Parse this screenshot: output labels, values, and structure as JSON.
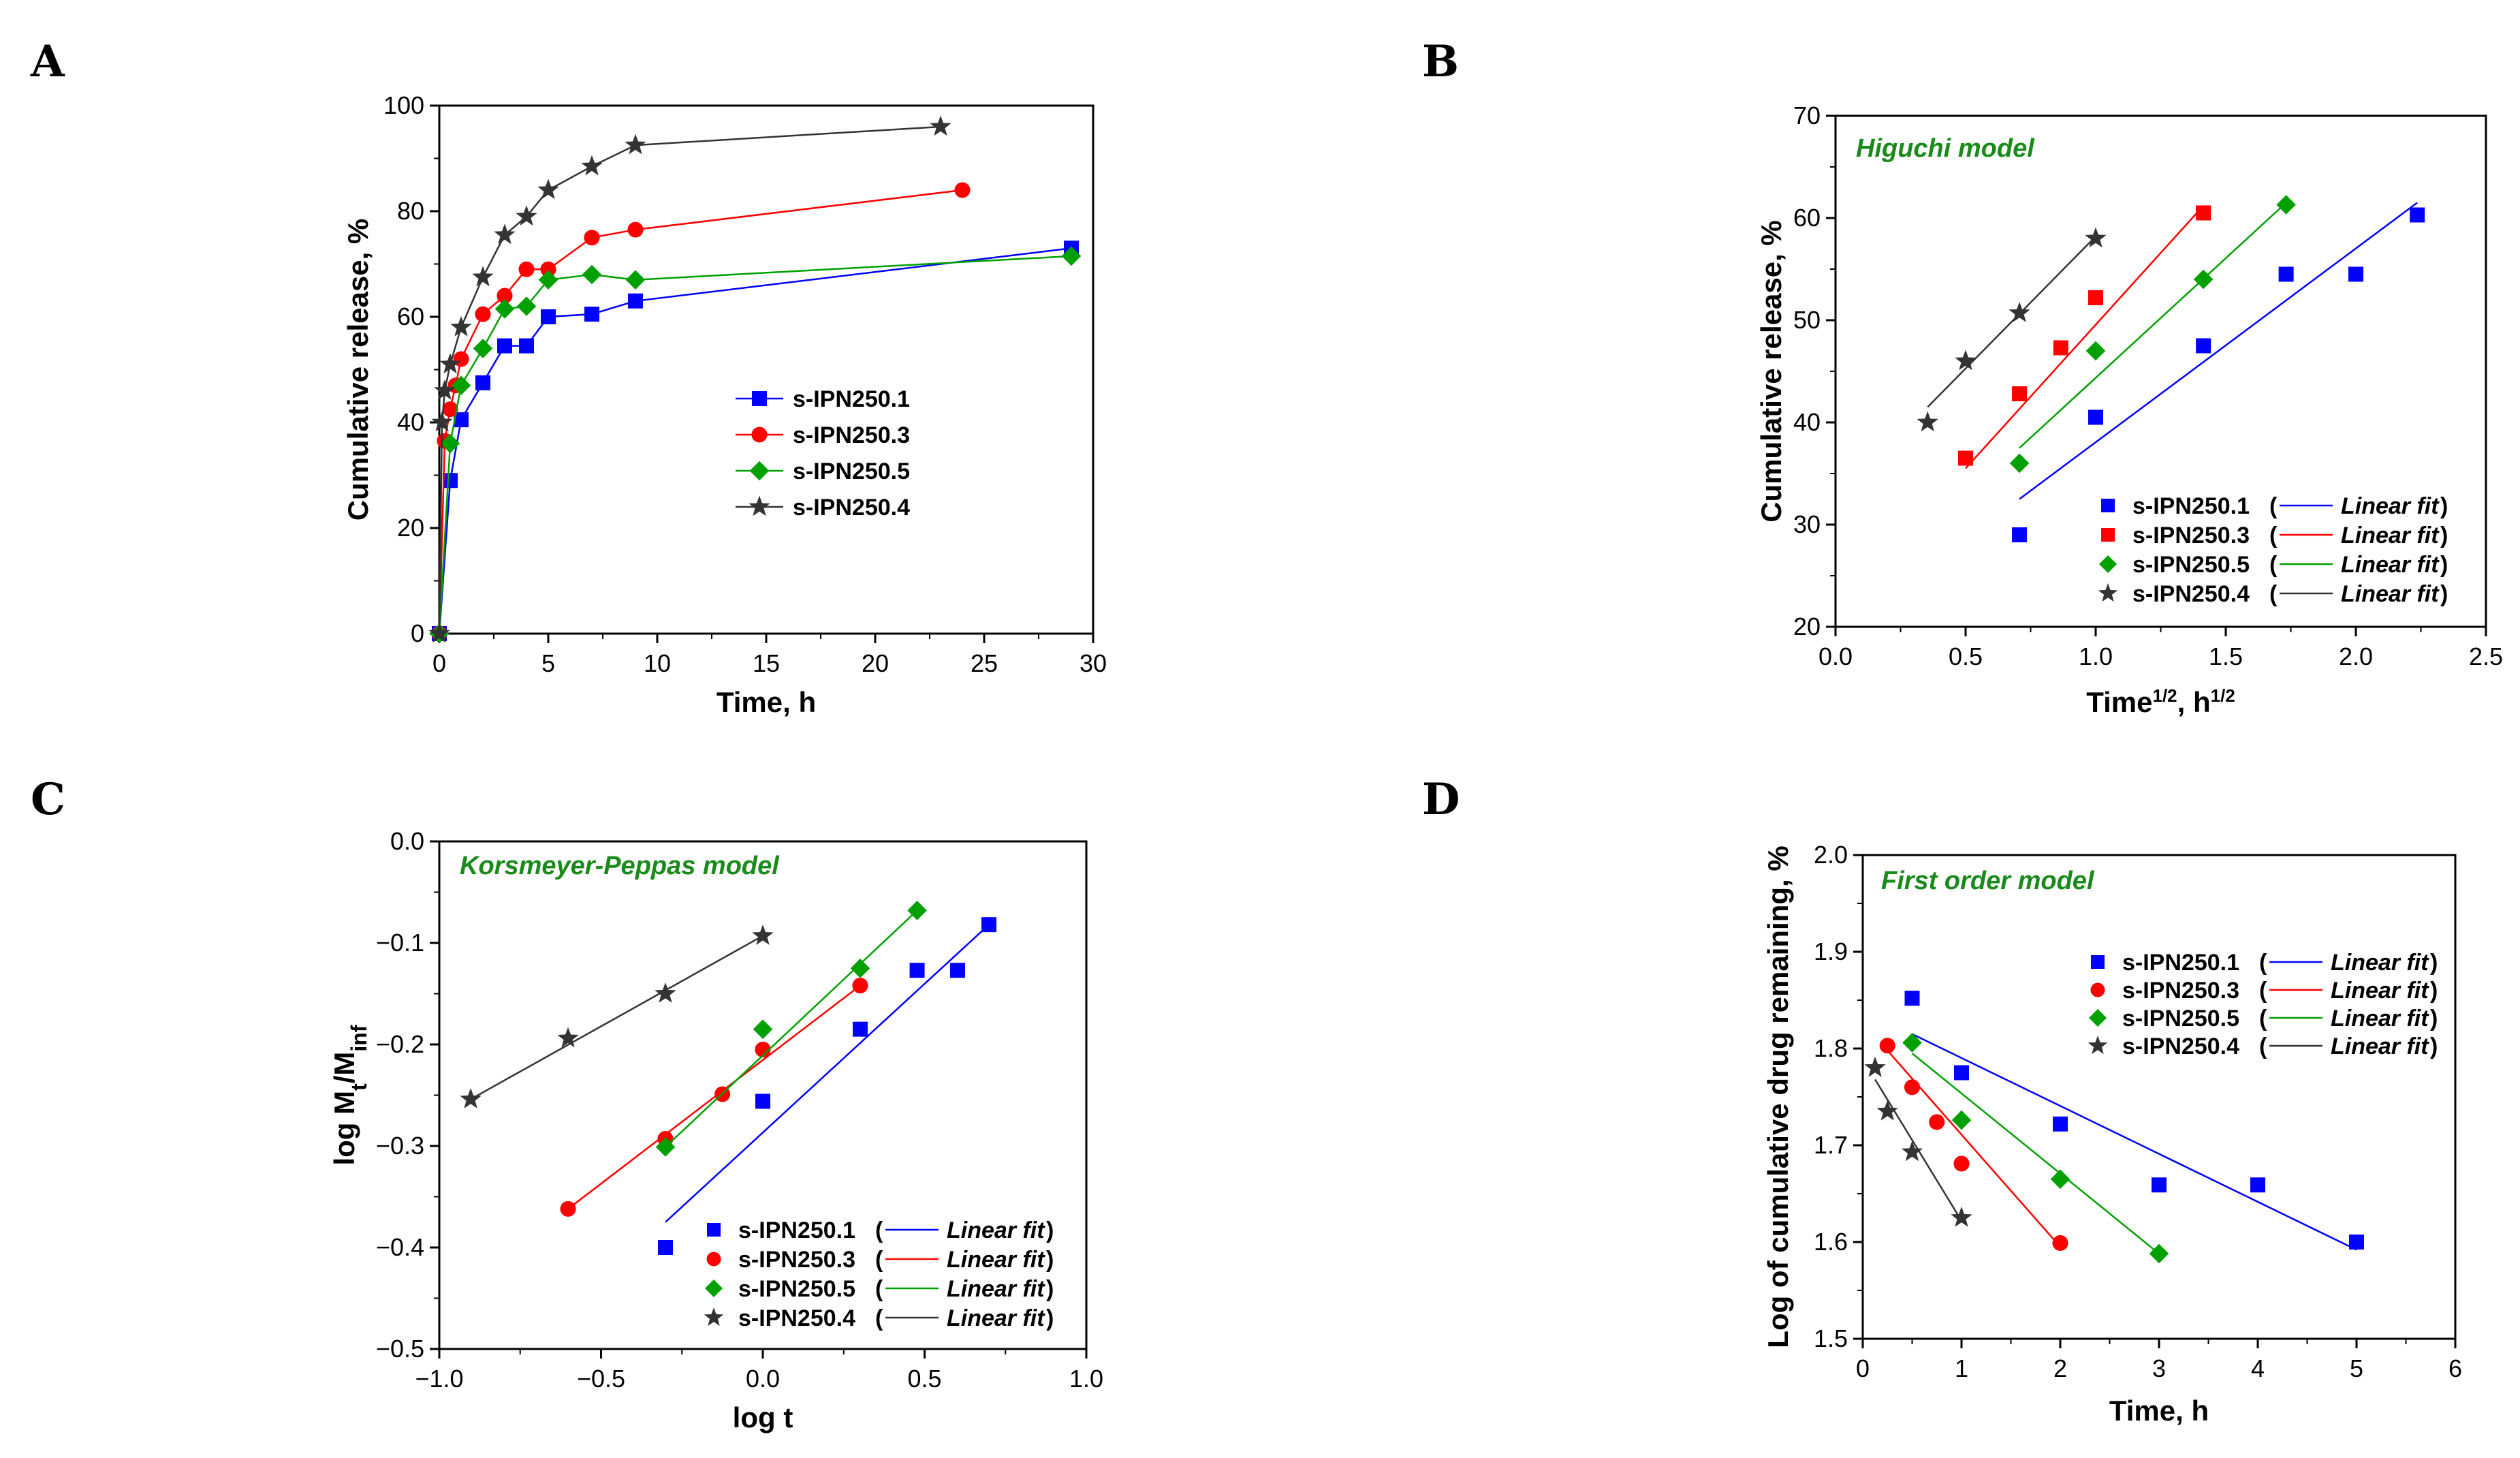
{
  "chart_data": [
    {
      "id": "A",
      "type": "line",
      "panel_label": "A",
      "xlabel": "Time, h",
      "ylabel": "Cumulative release, %",
      "xlim": [
        0,
        30
      ],
      "ylim": [
        0,
        100
      ],
      "xticks": [
        0,
        5,
        10,
        15,
        20,
        25,
        30
      ],
      "yticks": [
        0,
        20,
        40,
        60,
        80,
        100
      ],
      "xtick_labels": [
        "0",
        "5",
        "10",
        "15",
        "20",
        "25",
        "30"
      ],
      "ytick_labels": [
        "0",
        "20",
        "40",
        "60",
        "80",
        "100"
      ],
      "legend_position": "center-right",
      "series": [
        {
          "name": "s-IPN250.1",
          "color": "#0000ff",
          "marker": "square",
          "x": [
            0,
            0.5,
            1,
            2,
            3,
            4,
            5,
            7,
            9,
            29
          ],
          "y": [
            0,
            29,
            40.5,
            47.5,
            54.5,
            54.5,
            60,
            60.5,
            63,
            73
          ]
        },
        {
          "name": "s-IPN250.3",
          "color": "#ff0000",
          "marker": "circle",
          "x": [
            0,
            0.25,
            0.5,
            0.75,
            1,
            2,
            3,
            4,
            5,
            7,
            9,
            24
          ],
          "y": [
            0,
            36.5,
            42.5,
            47,
            52,
            60.5,
            64,
            69,
            69,
            75,
            76.5,
            84
          ]
        },
        {
          "name": "s-IPN250.5",
          "color": "#00a000",
          "marker": "diamond",
          "x": [
            0,
            0.5,
            1,
            2,
            3,
            4,
            5,
            7,
            9,
            29
          ],
          "y": [
            0,
            36,
            47,
            54,
            61.5,
            62,
            67,
            68,
            67,
            71.5
          ]
        },
        {
          "name": "s-IPN250.4",
          "color": "#333333",
          "marker": "star",
          "x": [
            0,
            0.125,
            0.25,
            0.5,
            1,
            2,
            3,
            4,
            5,
            7,
            9,
            23
          ],
          "y": [
            0,
            40,
            46,
            51,
            58,
            67.5,
            75.5,
            79,
            84,
            88.5,
            92.5,
            96
          ]
        }
      ]
    },
    {
      "id": "B",
      "type": "scatter",
      "panel_label": "B",
      "title": "Higuchi model",
      "xlabel": "Time",
      "xlabel_sup": "1/2",
      "xlabel_mid": ", h",
      "xlabel_sup2": "1/2",
      "ylabel": "Cumulative release, %",
      "xlim": [
        0,
        2.5
      ],
      "ylim": [
        20,
        70
      ],
      "xticks": [
        0,
        0.5,
        1,
        1.5,
        2,
        2.5
      ],
      "yticks": [
        20,
        30,
        40,
        50,
        60,
        70
      ],
      "xtick_labels": [
        "0.0",
        "0.5",
        "1.0",
        "1.5",
        "2.0",
        "2.5"
      ],
      "ytick_labels": [
        "20",
        "30",
        "40",
        "50",
        "60",
        "70"
      ],
      "legend_position": "bottom-right",
      "fit_label": "Linear fit",
      "series": [
        {
          "name": "s-IPN250.1",
          "color": "#0000ff",
          "marker": "square",
          "x": [
            0.707,
            1.0,
            1.414,
            1.732,
            2.0,
            2.236
          ],
          "y": [
            29,
            40.5,
            47.5,
            54.5,
            54.5,
            60.3
          ],
          "fit": [
            [
              0.707,
              32.5
            ],
            [
              2.236,
              61.5
            ]
          ]
        },
        {
          "name": "s-IPN250.3",
          "color": "#ff0000",
          "marker": "square",
          "x": [
            0.5,
            0.707,
            0.866,
            1.0,
            1.414
          ],
          "y": [
            36.5,
            42.8,
            47.3,
            52.2,
            60.5
          ],
          "fit": [
            [
              0.5,
              35.5
            ],
            [
              1.414,
              61.2
            ]
          ]
        },
        {
          "name": "s-IPN250.5",
          "color": "#00a000",
          "marker": "diamond",
          "x": [
            0.707,
            1.0,
            1.414,
            1.732
          ],
          "y": [
            36,
            47,
            54,
            61.3
          ],
          "fit": [
            [
              0.707,
              37.5
            ],
            [
              1.732,
              61.5
            ]
          ]
        },
        {
          "name": "s-IPN250.4",
          "color": "#333333",
          "marker": "star",
          "x": [
            0.354,
            0.5,
            0.707,
            1.0
          ],
          "y": [
            40,
            46,
            50.7,
            58
          ],
          "fit": [
            [
              0.354,
              41.5
            ],
            [
              1.0,
              58.2
            ]
          ]
        }
      ]
    },
    {
      "id": "C",
      "type": "scatter",
      "panel_label": "C",
      "title": "Korsmeyer-Peppas model",
      "xlabel": "log t",
      "ylabel_main": "log M",
      "ylabel_sub1": "t",
      "ylabel_mid": "/M",
      "ylabel_sub2": "inf",
      "xlim": [
        -1.0,
        1.0
      ],
      "ylim": [
        -0.5,
        0.0
      ],
      "xticks": [
        -1.0,
        -0.5,
        0.0,
        0.5,
        1.0
      ],
      "yticks": [
        -0.5,
        -0.4,
        -0.3,
        -0.2,
        -0.1,
        0.0
      ],
      "xtick_labels": [
        "−1.0",
        "−0.5",
        "0.0",
        "0.5",
        "1.0"
      ],
      "ytick_labels": [
        "−0.5",
        "−0.4",
        "−0.3",
        "−0.2",
        "−0.1",
        "0.0"
      ],
      "legend_position": "bottom-right",
      "fit_label": "Linear fit",
      "series": [
        {
          "name": "s-IPN250.1",
          "color": "#0000ff",
          "marker": "square",
          "x": [
            -0.301,
            0.0,
            0.301,
            0.477,
            0.602,
            0.699
          ],
          "y": [
            -0.4,
            -0.256,
            -0.185,
            -0.127,
            -0.127,
            -0.082
          ],
          "fit": [
            [
              -0.301,
              -0.375
            ],
            [
              0.699,
              -0.082
            ]
          ]
        },
        {
          "name": "s-IPN250.3",
          "color": "#ff0000",
          "marker": "circle",
          "x": [
            -0.602,
            -0.301,
            -0.125,
            0.0,
            0.301
          ],
          "y": [
            -0.362,
            -0.293,
            -0.249,
            -0.205,
            -0.142
          ],
          "fit": [
            [
              -0.602,
              -0.362
            ],
            [
              0.301,
              -0.142
            ]
          ]
        },
        {
          "name": "s-IPN250.5",
          "color": "#00a000",
          "marker": "diamond",
          "x": [
            -0.301,
            0.0,
            0.301,
            0.477
          ],
          "y": [
            -0.301,
            -0.185,
            -0.125,
            -0.068
          ],
          "fit": [
            [
              -0.301,
              -0.301
            ],
            [
              0.477,
              -0.068
            ]
          ]
        },
        {
          "name": "s-IPN250.4",
          "color": "#333333",
          "marker": "star",
          "x": [
            -0.903,
            -0.602,
            -0.301,
            0.0
          ],
          "y": [
            -0.254,
            -0.194,
            -0.15,
            -0.093
          ],
          "fit": [
            [
              -0.903,
              -0.254
            ],
            [
              0.0,
              -0.093
            ]
          ]
        }
      ]
    },
    {
      "id": "D",
      "type": "scatter",
      "panel_label": "D",
      "title": "First order model",
      "xlabel": "Time, h",
      "ylabel": "Log of cumulative drug remaining, %",
      "xlim": [
        0,
        6
      ],
      "ylim": [
        1.5,
        2.0
      ],
      "xticks": [
        0,
        1,
        2,
        3,
        4,
        5,
        6
      ],
      "yticks": [
        1.5,
        1.6,
        1.7,
        1.8,
        1.9,
        2.0
      ],
      "xtick_labels": [
        "0",
        "1",
        "2",
        "3",
        "4",
        "5",
        "6"
      ],
      "ytick_labels": [
        "1.5",
        "1.6",
        "1.7",
        "1.8",
        "1.9",
        "2.0"
      ],
      "legend_position": "top-right",
      "fit_label": "Linear fit",
      "series": [
        {
          "name": "s-IPN250.1",
          "color": "#0000ff",
          "marker": "square",
          "x": [
            0.5,
            1,
            2,
            3,
            4,
            5
          ],
          "y": [
            1.852,
            1.775,
            1.722,
            1.659,
            1.659,
            1.6
          ],
          "fit": [
            [
              0.5,
              1.815
            ],
            [
              5.0,
              1.592
            ]
          ]
        },
        {
          "name": "s-IPN250.3",
          "color": "#ff0000",
          "marker": "circle",
          "x": [
            0.25,
            0.5,
            0.75,
            1,
            2
          ],
          "y": [
            1.803,
            1.76,
            1.724,
            1.681,
            1.599
          ],
          "fit": [
            [
              0.25,
              1.798
            ],
            [
              2.0,
              1.595
            ]
          ]
        },
        {
          "name": "s-IPN250.5",
          "color": "#00a000",
          "marker": "diamond",
          "x": [
            0.5,
            1,
            2,
            3
          ],
          "y": [
            1.806,
            1.726,
            1.665,
            1.588
          ],
          "fit": [
            [
              0.5,
              1.795
            ],
            [
              3.0,
              1.588
            ]
          ]
        },
        {
          "name": "s-IPN250.4",
          "color": "#333333",
          "marker": "star",
          "x": [
            0.125,
            0.25,
            0.5,
            1
          ],
          "y": [
            1.78,
            1.735,
            1.693,
            1.625
          ],
          "fit": [
            [
              0.125,
              1.768
            ],
            [
              1.0,
              1.622
            ]
          ]
        }
      ]
    }
  ]
}
